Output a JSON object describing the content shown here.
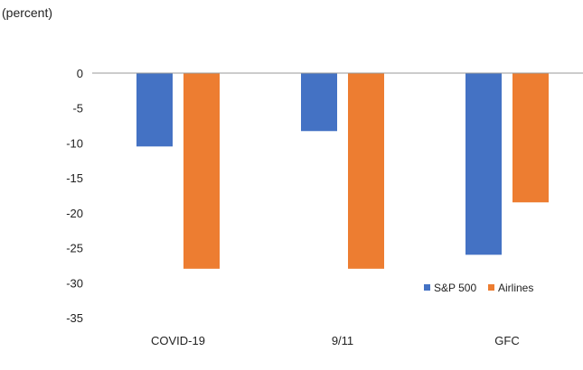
{
  "chart_data": {
    "type": "bar",
    "unit_label": "(percent)",
    "categories": [
      "COVID-19",
      "9/11",
      "GFC"
    ],
    "series": [
      {
        "name": "S&P 500",
        "values": [
          -10.5,
          -8.3,
          -26.0
        ],
        "color": "#4472c4"
      },
      {
        "name": "Airlines",
        "values": [
          -28.0,
          -28.0,
          -18.5
        ],
        "color": "#ed7d31"
      }
    ],
    "ylim": [
      -35,
      0
    ],
    "yticks": [
      0,
      -5,
      -10,
      -15,
      -20,
      -25,
      -30,
      -35
    ],
    "grid": false,
    "legend_position": "bottom-right"
  }
}
